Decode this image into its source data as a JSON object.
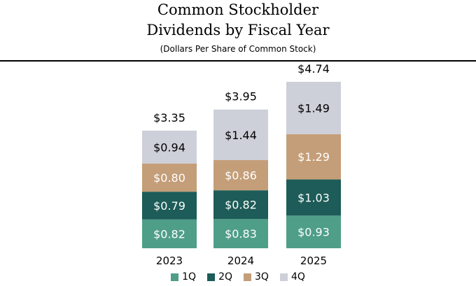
{
  "chart_data": {
    "type": "bar",
    "stacked": true,
    "title": "Common Stockholder Dividends by Fiscal Year",
    "title_lines": [
      "Common Stockholder",
      "Dividends by Fiscal Year"
    ],
    "subtitle": "(Dollars Per Share of Common Stock)",
    "categories": [
      "2023",
      "2024",
      "2025"
    ],
    "series": [
      {
        "name": "1Q",
        "color": "#4f9e88",
        "values": [
          0.82,
          0.83,
          0.93
        ],
        "labels": [
          "$0.82",
          "$0.83",
          "$0.93"
        ],
        "label_color": "#ffffff"
      },
      {
        "name": "2Q",
        "color": "#1d5c58",
        "values": [
          0.79,
          0.82,
          1.03
        ],
        "labels": [
          "$0.79",
          "$0.82",
          "$1.03"
        ],
        "label_color": "#ffffff"
      },
      {
        "name": "3Q",
        "color": "#c49e78",
        "values": [
          0.8,
          0.86,
          1.29
        ],
        "labels": [
          "$0.80",
          "$0.86",
          "$1.29"
        ],
        "label_color": "#ffffff"
      },
      {
        "name": "4Q",
        "color": "#cdd0d8",
        "values": [
          0.94,
          1.44,
          1.49
        ],
        "labels": [
          "$0.94",
          "$1.44",
          "$1.49"
        ],
        "label_color": "#000000"
      }
    ],
    "totals": [
      3.35,
      3.95,
      4.74
    ],
    "total_labels": [
      "$3.35",
      "$3.95",
      "$4.74"
    ],
    "legend": "bottom",
    "grid": false,
    "ylim": [
      0,
      4.74
    ]
  }
}
